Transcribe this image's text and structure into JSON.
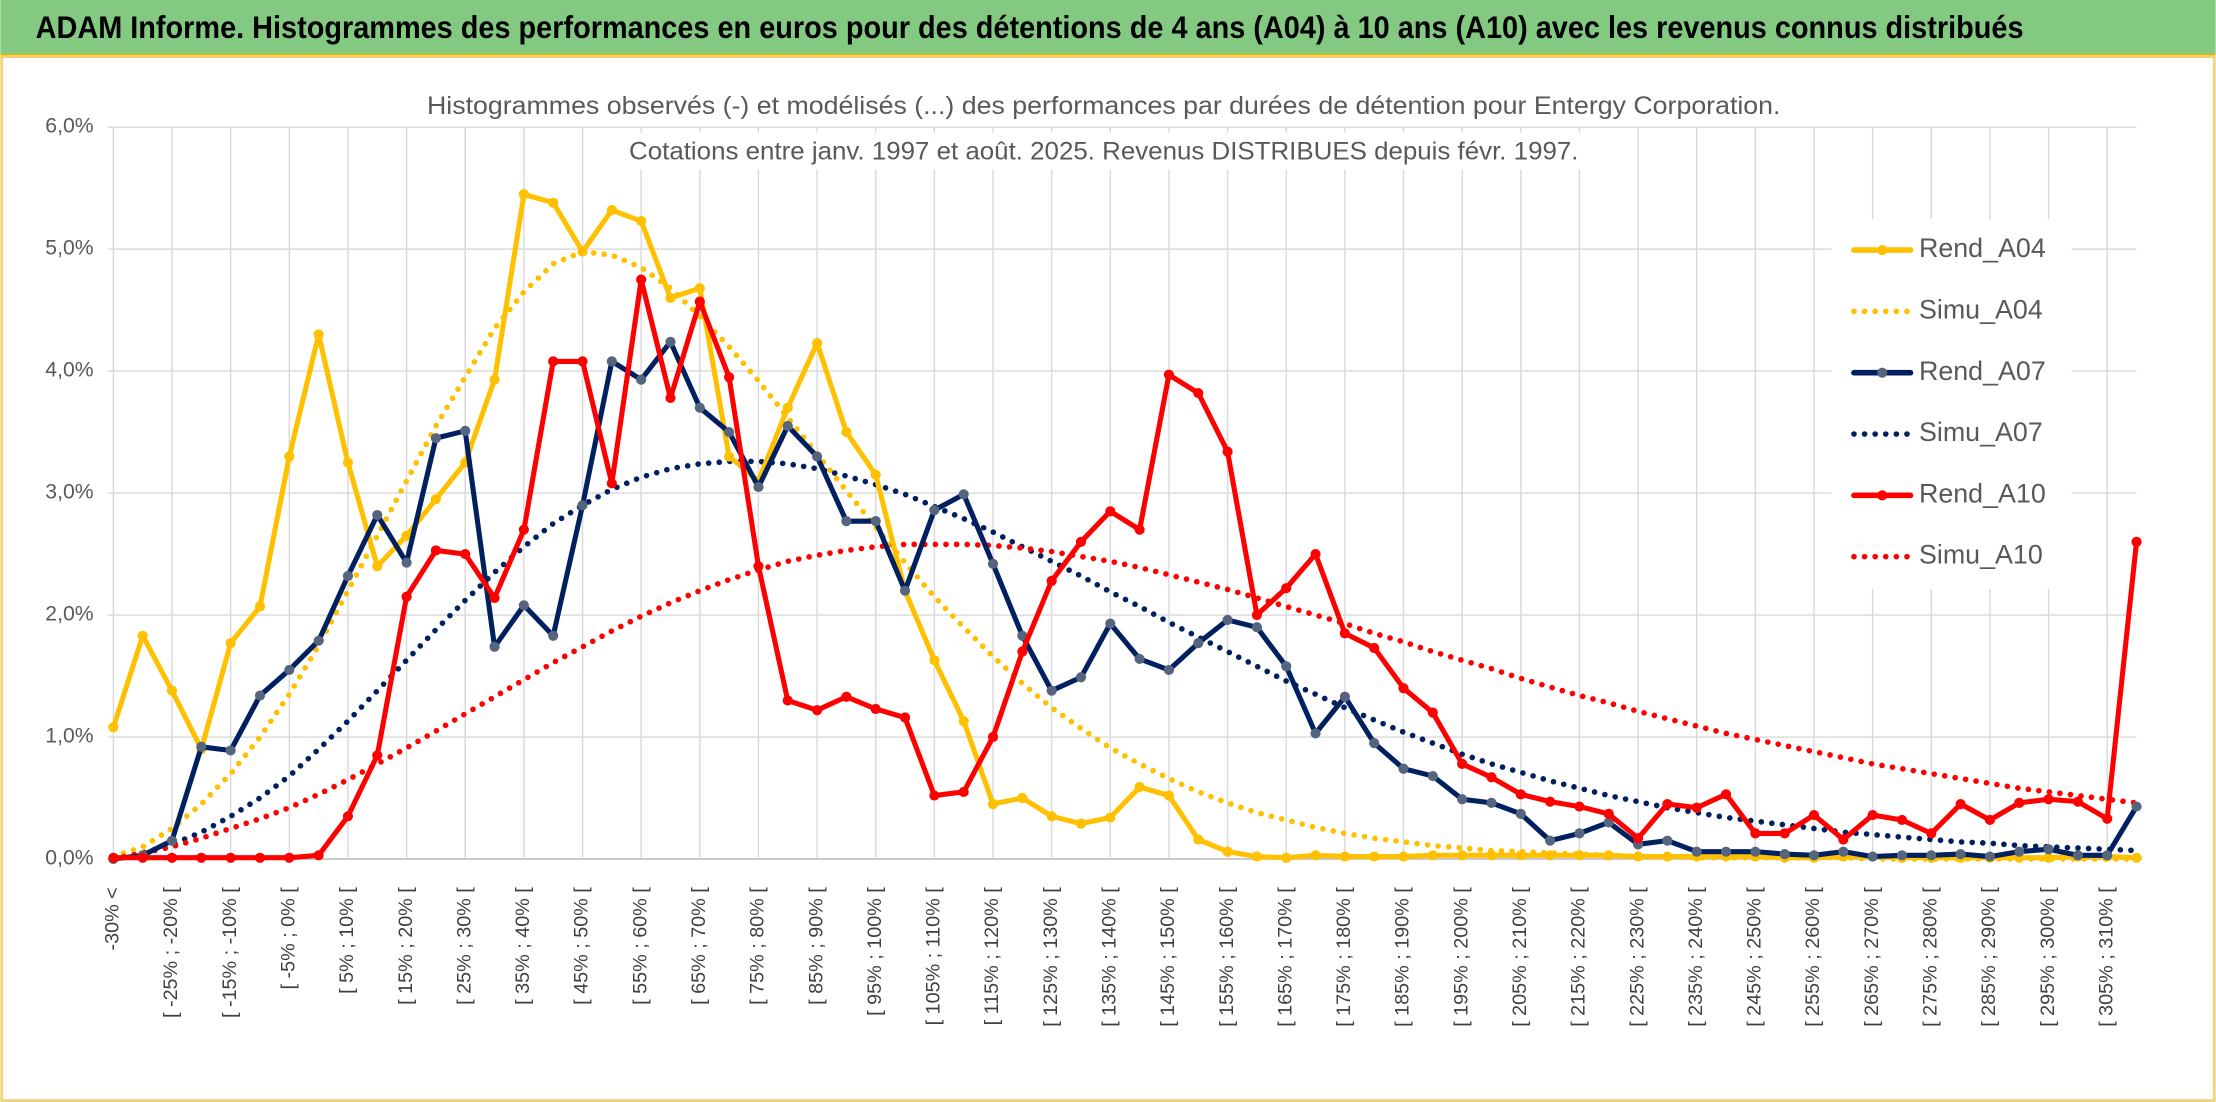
{
  "chart_data": {
    "type": "line",
    "header": "ADAM Informe. Histogrammes des performances en euros pour des détentions de 4 ans (A04) à 10 ans (A10) avec les revenus connus distribués",
    "title": "Histogrammes observés (-) et modélisés (...) des performances par durées de détention pour Entergy Corporation.",
    "subtitle": "Cotations entre janv. 1997 et août. 2025. Revenus DISTRIBUES depuis févr. 1997.",
    "categories": [
      "-30% <",
      null,
      "[ -25% ; -20% [",
      null,
      "[ -15% ; -10% [",
      null,
      "[ -5% ; 0% [",
      null,
      "[ 5% ; 10% [",
      null,
      "[ 15% ; 20% [",
      null,
      "[ 25% ; 30% [",
      null,
      "[ 35% ; 40% [",
      null,
      "[ 45% ; 50% [",
      null,
      "[ 55% ; 60% [",
      null,
      "[ 65% ; 70% [",
      null,
      "[ 75% ; 80% [",
      null,
      "[ 85% ; 90% [",
      null,
      "[ 95% ; 100% [",
      null,
      "[ 105% ; 110% [",
      null,
      "[ 115% ; 120% [",
      null,
      "[ 125% ; 130% [",
      null,
      "[ 135% ; 140% [",
      null,
      "[ 145% ; 150% [",
      null,
      "[ 155% ; 160% [",
      null,
      "[ 165% ; 170% [",
      null,
      "[ 175% ; 180% [",
      null,
      "[ 185% ; 190% [",
      null,
      "[ 195% ; 200% [",
      null,
      "[ 205% ; 210% [",
      null,
      "[ 215% ; 220% [",
      null,
      "[ 225% ; 230% [",
      null,
      "[ 235% ; 240% [",
      null,
      "[ 245% ; 250% [",
      null,
      "[ 255% ; 260% [",
      null,
      "[ 265% ; 270% [",
      null,
      "[ 275% ; 280% [",
      null,
      "[ 285% ; 290% [",
      null,
      "[ 295% ; 300% [",
      null,
      "[ 305% ; 310% [",
      null
    ],
    "ylim": [
      0,
      6
    ],
    "yticks": [
      {
        "value": 0,
        "label": "0,0%"
      },
      {
        "value": 1,
        "label": "1,0%"
      },
      {
        "value": 2,
        "label": "2,0%"
      },
      {
        "value": 3,
        "label": "3,0%"
      },
      {
        "value": 4,
        "label": "4,0%"
      },
      {
        "value": 5,
        "label": "5,0%"
      },
      {
        "value": 6,
        "label": "6,0%"
      }
    ],
    "grid": true,
    "legend": "right",
    "series": [
      {
        "name": "Rend_A04",
        "color": "#FFC000",
        "style": "solid",
        "values": [
          1.08,
          1.83,
          1.38,
          0.9,
          1.77,
          2.07,
          3.3,
          4.3,
          3.25,
          2.4,
          2.65,
          2.95,
          3.25,
          3.93,
          5.45,
          5.38,
          4.98,
          5.32,
          5.23,
          4.6,
          4.68,
          3.3,
          3.1,
          3.7,
          4.23,
          3.5,
          3.15,
          2.2,
          1.63,
          1.13,
          0.45,
          0.5,
          0.35,
          0.29,
          0.34,
          0.59,
          0.52,
          0.16,
          0.06,
          0.02,
          0.01,
          0.03,
          0.02,
          0.02,
          0.02,
          0.03,
          0.03,
          0.03,
          0.03,
          0.03,
          0.03,
          0.03,
          0.02,
          0.02,
          0.02,
          0.02,
          0.02,
          0.01,
          0.01,
          0.02,
          0.02,
          0.01,
          0.01,
          0.01,
          0.01,
          0.01,
          0.01,
          0.02,
          0.02,
          0.01
        ]
      },
      {
        "name": "Simu_A04",
        "color": "#FFC000",
        "style": "dotted",
        "values": [
          0.02,
          0.1,
          0.25,
          0.45,
          0.7,
          1.0,
          1.35,
          1.75,
          2.2,
          2.65,
          3.1,
          3.55,
          3.95,
          4.35,
          4.65,
          4.88,
          4.98,
          4.95,
          4.85,
          4.68,
          4.45,
          4.2,
          3.92,
          3.62,
          3.32,
          3.02,
          2.72,
          2.43,
          2.15,
          1.9,
          1.66,
          1.44,
          1.24,
          1.07,
          0.91,
          0.78,
          0.66,
          0.55,
          0.46,
          0.38,
          0.32,
          0.26,
          0.21,
          0.17,
          0.14,
          0.11,
          0.09,
          0.07,
          0.06,
          0.05,
          0.04,
          0.03,
          0.02,
          0.02,
          0.01,
          0.01,
          0.01,
          0.01,
          0.01,
          0.01,
          0.0,
          0.0,
          0.0,
          0.0,
          0.0,
          0.0,
          0.0,
          0.0,
          0.0,
          0.0
        ]
      },
      {
        "name": "Rend_A07",
        "color": "#002060",
        "marker_color": "#56657e",
        "style": "solid",
        "values": [
          0.0,
          0.03,
          0.15,
          0.92,
          0.89,
          1.34,
          1.55,
          1.79,
          2.32,
          2.82,
          2.43,
          3.45,
          3.51,
          1.74,
          2.08,
          1.83,
          2.9,
          4.08,
          3.93,
          4.24,
          3.7,
          3.5,
          3.05,
          3.55,
          3.3,
          2.77,
          2.77,
          2.2,
          2.86,
          2.99,
          2.42,
          1.83,
          1.38,
          1.49,
          1.93,
          1.64,
          1.55,
          1.77,
          1.96,
          1.9,
          1.58,
          1.03,
          1.33,
          0.95,
          0.74,
          0.68,
          0.49,
          0.46,
          0.37,
          0.15,
          0.21,
          0.3,
          0.12,
          0.15,
          0.06,
          0.06,
          0.06,
          0.04,
          0.03,
          0.06,
          0.02,
          0.03,
          0.03,
          0.04,
          0.02,
          0.06,
          0.08,
          0.03,
          0.03,
          0.43
        ]
      },
      {
        "name": "Simu_A07",
        "color": "#002060",
        "style": "dotted",
        "values": [
          0.0,
          0.05,
          0.12,
          0.22,
          0.35,
          0.5,
          0.68,
          0.9,
          1.13,
          1.38,
          1.63,
          1.88,
          2.12,
          2.35,
          2.56,
          2.75,
          2.9,
          3.03,
          3.13,
          3.2,
          3.24,
          3.26,
          3.26,
          3.24,
          3.2,
          3.14,
          3.07,
          2.99,
          2.89,
          2.79,
          2.68,
          2.56,
          2.44,
          2.32,
          2.19,
          2.07,
          1.94,
          1.82,
          1.7,
          1.58,
          1.46,
          1.35,
          1.24,
          1.14,
          1.04,
          0.95,
          0.86,
          0.78,
          0.71,
          0.64,
          0.58,
          0.52,
          0.47,
          0.42,
          0.38,
          0.34,
          0.31,
          0.28,
          0.25,
          0.22,
          0.2,
          0.18,
          0.16,
          0.14,
          0.13,
          0.11,
          0.1,
          0.09,
          0.08,
          0.07
        ]
      },
      {
        "name": "Rend_A10",
        "color": "#FF0000",
        "style": "solid",
        "values": [
          0.01,
          0.01,
          0.01,
          0.01,
          0.01,
          0.01,
          0.01,
          0.03,
          0.35,
          0.85,
          2.15,
          2.53,
          2.5,
          2.14,
          2.7,
          4.08,
          4.08,
          3.08,
          4.75,
          3.78,
          4.57,
          3.95,
          2.4,
          1.3,
          1.22,
          1.33,
          1.23,
          1.16,
          0.52,
          0.55,
          1.0,
          1.7,
          2.28,
          2.6,
          2.85,
          2.7,
          3.97,
          3.82,
          3.34,
          2.0,
          2.22,
          2.5,
          1.85,
          1.73,
          1.4,
          1.2,
          0.78,
          0.67,
          0.53,
          0.47,
          0.43,
          0.37,
          0.17,
          0.45,
          0.42,
          0.53,
          0.21,
          0.21,
          0.36,
          0.16,
          0.36,
          0.32,
          0.21,
          0.45,
          0.32,
          0.46,
          0.49,
          0.47,
          0.33,
          2.6
        ]
      },
      {
        "name": "Simu_A10",
        "color": "#FF0000",
        "style": "dotted",
        "values": [
          0.0,
          0.05,
          0.1,
          0.17,
          0.25,
          0.33,
          0.42,
          0.53,
          0.65,
          0.78,
          0.91,
          1.05,
          1.19,
          1.33,
          1.47,
          1.61,
          1.74,
          1.87,
          1.99,
          2.1,
          2.2,
          2.29,
          2.37,
          2.44,
          2.49,
          2.53,
          2.56,
          2.58,
          2.58,
          2.58,
          2.57,
          2.55,
          2.52,
          2.48,
          2.44,
          2.39,
          2.33,
          2.27,
          2.21,
          2.14,
          2.07,
          2.0,
          1.93,
          1.85,
          1.78,
          1.7,
          1.63,
          1.56,
          1.48,
          1.41,
          1.34,
          1.28,
          1.21,
          1.15,
          1.09,
          1.03,
          0.98,
          0.93,
          0.88,
          0.83,
          0.78,
          0.74,
          0.7,
          0.66,
          0.62,
          0.58,
          0.55,
          0.52,
          0.49,
          0.46
        ]
      }
    ]
  }
}
